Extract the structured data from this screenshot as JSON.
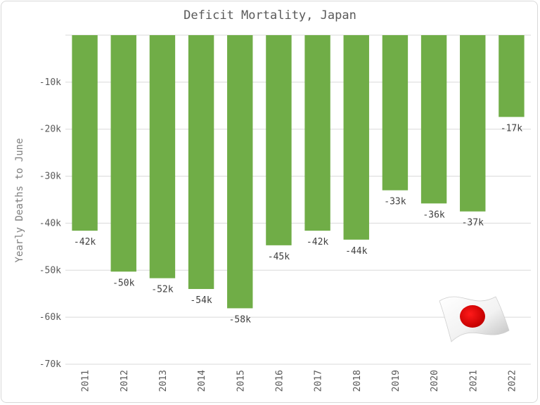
{
  "chart_data": {
    "type": "bar",
    "title": "Deficit Mortality, Japan",
    "ylabel": "Yearly Deaths to June",
    "xlabel": "",
    "categories": [
      "2011",
      "2012",
      "2013",
      "2014",
      "2015",
      "2016",
      "2017",
      "2018",
      "2019",
      "2020",
      "2021",
      "2022"
    ],
    "values": [
      -41600,
      -50300,
      -51700,
      -54000,
      -58100,
      -44700,
      -41600,
      -43500,
      -33000,
      -35800,
      -37500,
      -17400
    ],
    "data_labels": [
      "-42k",
      "-50k",
      "-52k",
      "-54k",
      "-58k",
      "-45k",
      "-42k",
      "-44k",
      "-33k",
      "-36k",
      "-37k",
      "-17k"
    ],
    "ylim": [
      -70000,
      0
    ],
    "yticks": [
      0,
      -10000,
      -20000,
      -30000,
      -40000,
      -50000,
      -60000,
      -70000
    ],
    "ytick_labels": [
      "",
      "-10k",
      "-20k",
      "-30k",
      "-40k",
      "-50k",
      "-60k",
      "-70k"
    ],
    "grid": true,
    "bar_color": "#70ad47",
    "decoration": "japan-flag-icon"
  }
}
